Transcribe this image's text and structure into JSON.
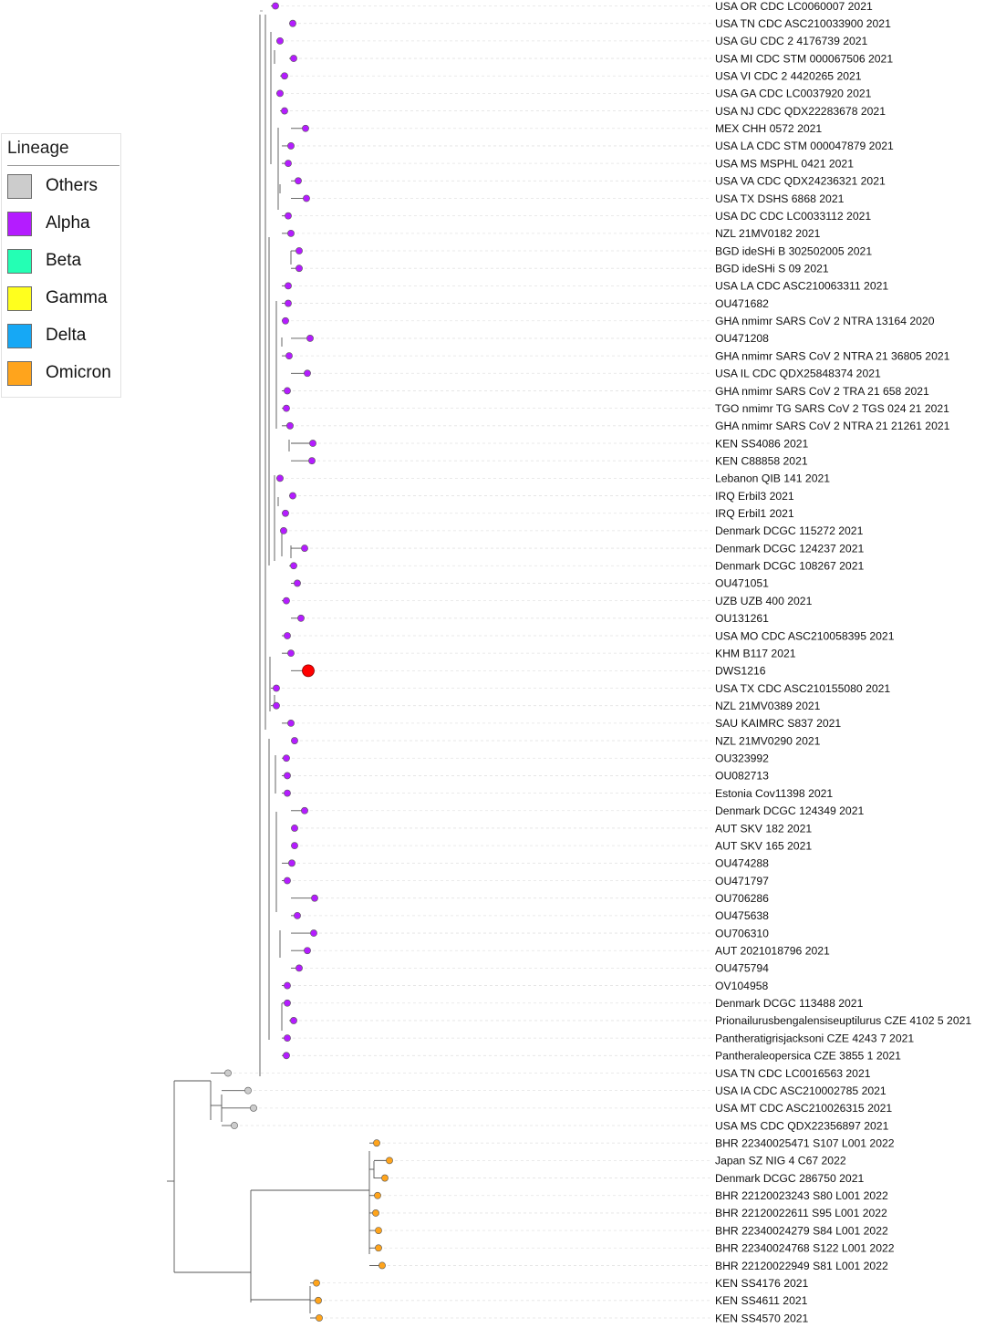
{
  "legend": {
    "title": "Lineage",
    "items": [
      {
        "label": "Others",
        "color": "#cccccc"
      },
      {
        "label": "Alpha",
        "color": "#b41cff"
      },
      {
        "label": "Beta",
        "color": "#24ffb4"
      },
      {
        "label": "Gamma",
        "color": "#ffff1e"
      },
      {
        "label": "Delta",
        "color": "#16a8f5"
      },
      {
        "label": "Omicron",
        "color": "#ffa41c"
      }
    ]
  },
  "highlight_color": "#ff0000",
  "tips": [
    {
      "label": "USA OR CDC LC0060007 2021",
      "lineage": "Alpha"
    },
    {
      "label": "USA TN CDC ASC210033900 2021",
      "lineage": "Alpha"
    },
    {
      "label": "USA GU CDC 2 4176739 2021",
      "lineage": "Alpha"
    },
    {
      "label": "USA MI CDC STM 000067506 2021",
      "lineage": "Alpha"
    },
    {
      "label": "USA VI CDC 2 4420265 2021",
      "lineage": "Alpha"
    },
    {
      "label": "USA GA CDC LC0037920 2021",
      "lineage": "Alpha"
    },
    {
      "label": "USA NJ CDC QDX22283678 2021",
      "lineage": "Alpha"
    },
    {
      "label": "MEX CHH 0572 2021",
      "lineage": "Alpha"
    },
    {
      "label": "USA LA CDC STM 000047879 2021",
      "lineage": "Alpha"
    },
    {
      "label": "USA MS MSPHL 0421 2021",
      "lineage": "Alpha"
    },
    {
      "label": "USA VA CDC QDX24236321 2021",
      "lineage": "Alpha"
    },
    {
      "label": "USA TX DSHS 6868 2021",
      "lineage": "Alpha"
    },
    {
      "label": "USA DC CDC LC0033112 2021",
      "lineage": "Alpha"
    },
    {
      "label": "NZL 21MV0182 2021",
      "lineage": "Alpha"
    },
    {
      "label": "BGD ideSHi B 302502005 2021",
      "lineage": "Alpha"
    },
    {
      "label": "BGD ideSHi S 09 2021",
      "lineage": "Alpha"
    },
    {
      "label": "USA LA CDC ASC210063311 2021",
      "lineage": "Alpha"
    },
    {
      "label": "OU471682",
      "lineage": "Alpha"
    },
    {
      "label": "GHA nmimr SARS CoV 2 NTRA 13164 2020",
      "lineage": "Alpha"
    },
    {
      "label": "OU471208",
      "lineage": "Alpha"
    },
    {
      "label": "GHA nmimr SARS CoV 2 NTRA 21 36805 2021",
      "lineage": "Alpha"
    },
    {
      "label": "USA IL CDC QDX25848374 2021",
      "lineage": "Alpha"
    },
    {
      "label": "GHA nmimr SARS CoV 2 TRA 21 658 2021",
      "lineage": "Alpha"
    },
    {
      "label": "TGO nmimr TG SARS CoV 2 TGS 024 21 2021",
      "lineage": "Alpha"
    },
    {
      "label": "GHA nmimr SARS CoV 2 NTRA 21 21261 2021",
      "lineage": "Alpha"
    },
    {
      "label": "KEN SS4086 2021",
      "lineage": "Alpha"
    },
    {
      "label": "KEN C88858 2021",
      "lineage": "Alpha"
    },
    {
      "label": "Lebanon QIB 141 2021",
      "lineage": "Alpha"
    },
    {
      "label": "IRQ Erbil3 2021",
      "lineage": "Alpha"
    },
    {
      "label": "IRQ Erbil1 2021",
      "lineage": "Alpha"
    },
    {
      "label": "Denmark DCGC 115272 2021",
      "lineage": "Alpha"
    },
    {
      "label": "Denmark DCGC 124237 2021",
      "lineage": "Alpha"
    },
    {
      "label": "Denmark DCGC 108267 2021",
      "lineage": "Alpha"
    },
    {
      "label": "OU471051",
      "lineage": "Alpha"
    },
    {
      "label": "UZB UZB 400 2021",
      "lineage": "Alpha"
    },
    {
      "label": "OU131261",
      "lineage": "Alpha"
    },
    {
      "label": "USA MO CDC ASC210058395 2021",
      "lineage": "Alpha"
    },
    {
      "label": "KHM B117 2021",
      "lineage": "Alpha"
    },
    {
      "label": "DWS1216",
      "lineage": "Alpha",
      "highlight": true
    },
    {
      "label": "USA TX CDC ASC210155080 2021",
      "lineage": "Alpha"
    },
    {
      "label": "NZL 21MV0389 2021",
      "lineage": "Alpha"
    },
    {
      "label": "SAU KAIMRC S837 2021",
      "lineage": "Alpha"
    },
    {
      "label": "NZL 21MV0290 2021",
      "lineage": "Alpha"
    },
    {
      "label": "OU323992",
      "lineage": "Alpha"
    },
    {
      "label": "OU082713",
      "lineage": "Alpha"
    },
    {
      "label": "Estonia Cov11398 2021",
      "lineage": "Alpha"
    },
    {
      "label": "Denmark DCGC 124349 2021",
      "lineage": "Alpha"
    },
    {
      "label": "AUT SKV 182 2021",
      "lineage": "Alpha"
    },
    {
      "label": "AUT SKV 165 2021",
      "lineage": "Alpha"
    },
    {
      "label": "OU474288",
      "lineage": "Alpha"
    },
    {
      "label": "OU471797",
      "lineage": "Alpha"
    },
    {
      "label": "OU706286",
      "lineage": "Alpha"
    },
    {
      "label": "OU475638",
      "lineage": "Alpha"
    },
    {
      "label": "OU706310",
      "lineage": "Alpha"
    },
    {
      "label": "AUT 2021018796 2021",
      "lineage": "Alpha"
    },
    {
      "label": "OU475794",
      "lineage": "Alpha"
    },
    {
      "label": "OV104958",
      "lineage": "Alpha"
    },
    {
      "label": "Denmark DCGC 113488 2021",
      "lineage": "Alpha"
    },
    {
      "label": "Prionailurusbengalensiseuptilurus CZE 4102 5 2021",
      "lineage": "Alpha"
    },
    {
      "label": "Pantheratigrisjacksoni CZE 4243 7 2021",
      "lineage": "Alpha"
    },
    {
      "label": "Pantheraleopersica CZE 3855 1 2021",
      "lineage": "Alpha"
    },
    {
      "label": "USA TN CDC LC0016563 2021",
      "lineage": "Others"
    },
    {
      "label": "USA IA CDC ASC210002785 2021",
      "lineage": "Others"
    },
    {
      "label": "USA MT CDC ASC210026315 2021",
      "lineage": "Others"
    },
    {
      "label": "USA MS CDC QDX22356897 2021",
      "lineage": "Others"
    },
    {
      "label": "BHR 22340025471 S107 L001 2022",
      "lineage": "Omicron"
    },
    {
      "label": "Japan SZ NIG 4 C67 2022",
      "lineage": "Omicron"
    },
    {
      "label": "Denmark DCGC 286750 2021",
      "lineage": "Omicron"
    },
    {
      "label": "BHR 22120023243 S80 L001 2022",
      "lineage": "Omicron"
    },
    {
      "label": "BHR 22120022611 S95 L001 2022",
      "lineage": "Omicron"
    },
    {
      "label": "BHR 22340024279 S84 L001 2022",
      "lineage": "Omicron"
    },
    {
      "label": "BHR 22340024768 S122 L001 2022",
      "lineage": "Omicron"
    },
    {
      "label": "BHR 22120022949 S81 L001 2022",
      "lineage": "Omicron"
    },
    {
      "label": "KEN SS4176 2021",
      "lineage": "Omicron"
    },
    {
      "label": "KEN SS4611 2021",
      "lineage": "Omicron"
    },
    {
      "label": "KEN SS4570 2021",
      "lineage": "Omicron"
    }
  ]
}
